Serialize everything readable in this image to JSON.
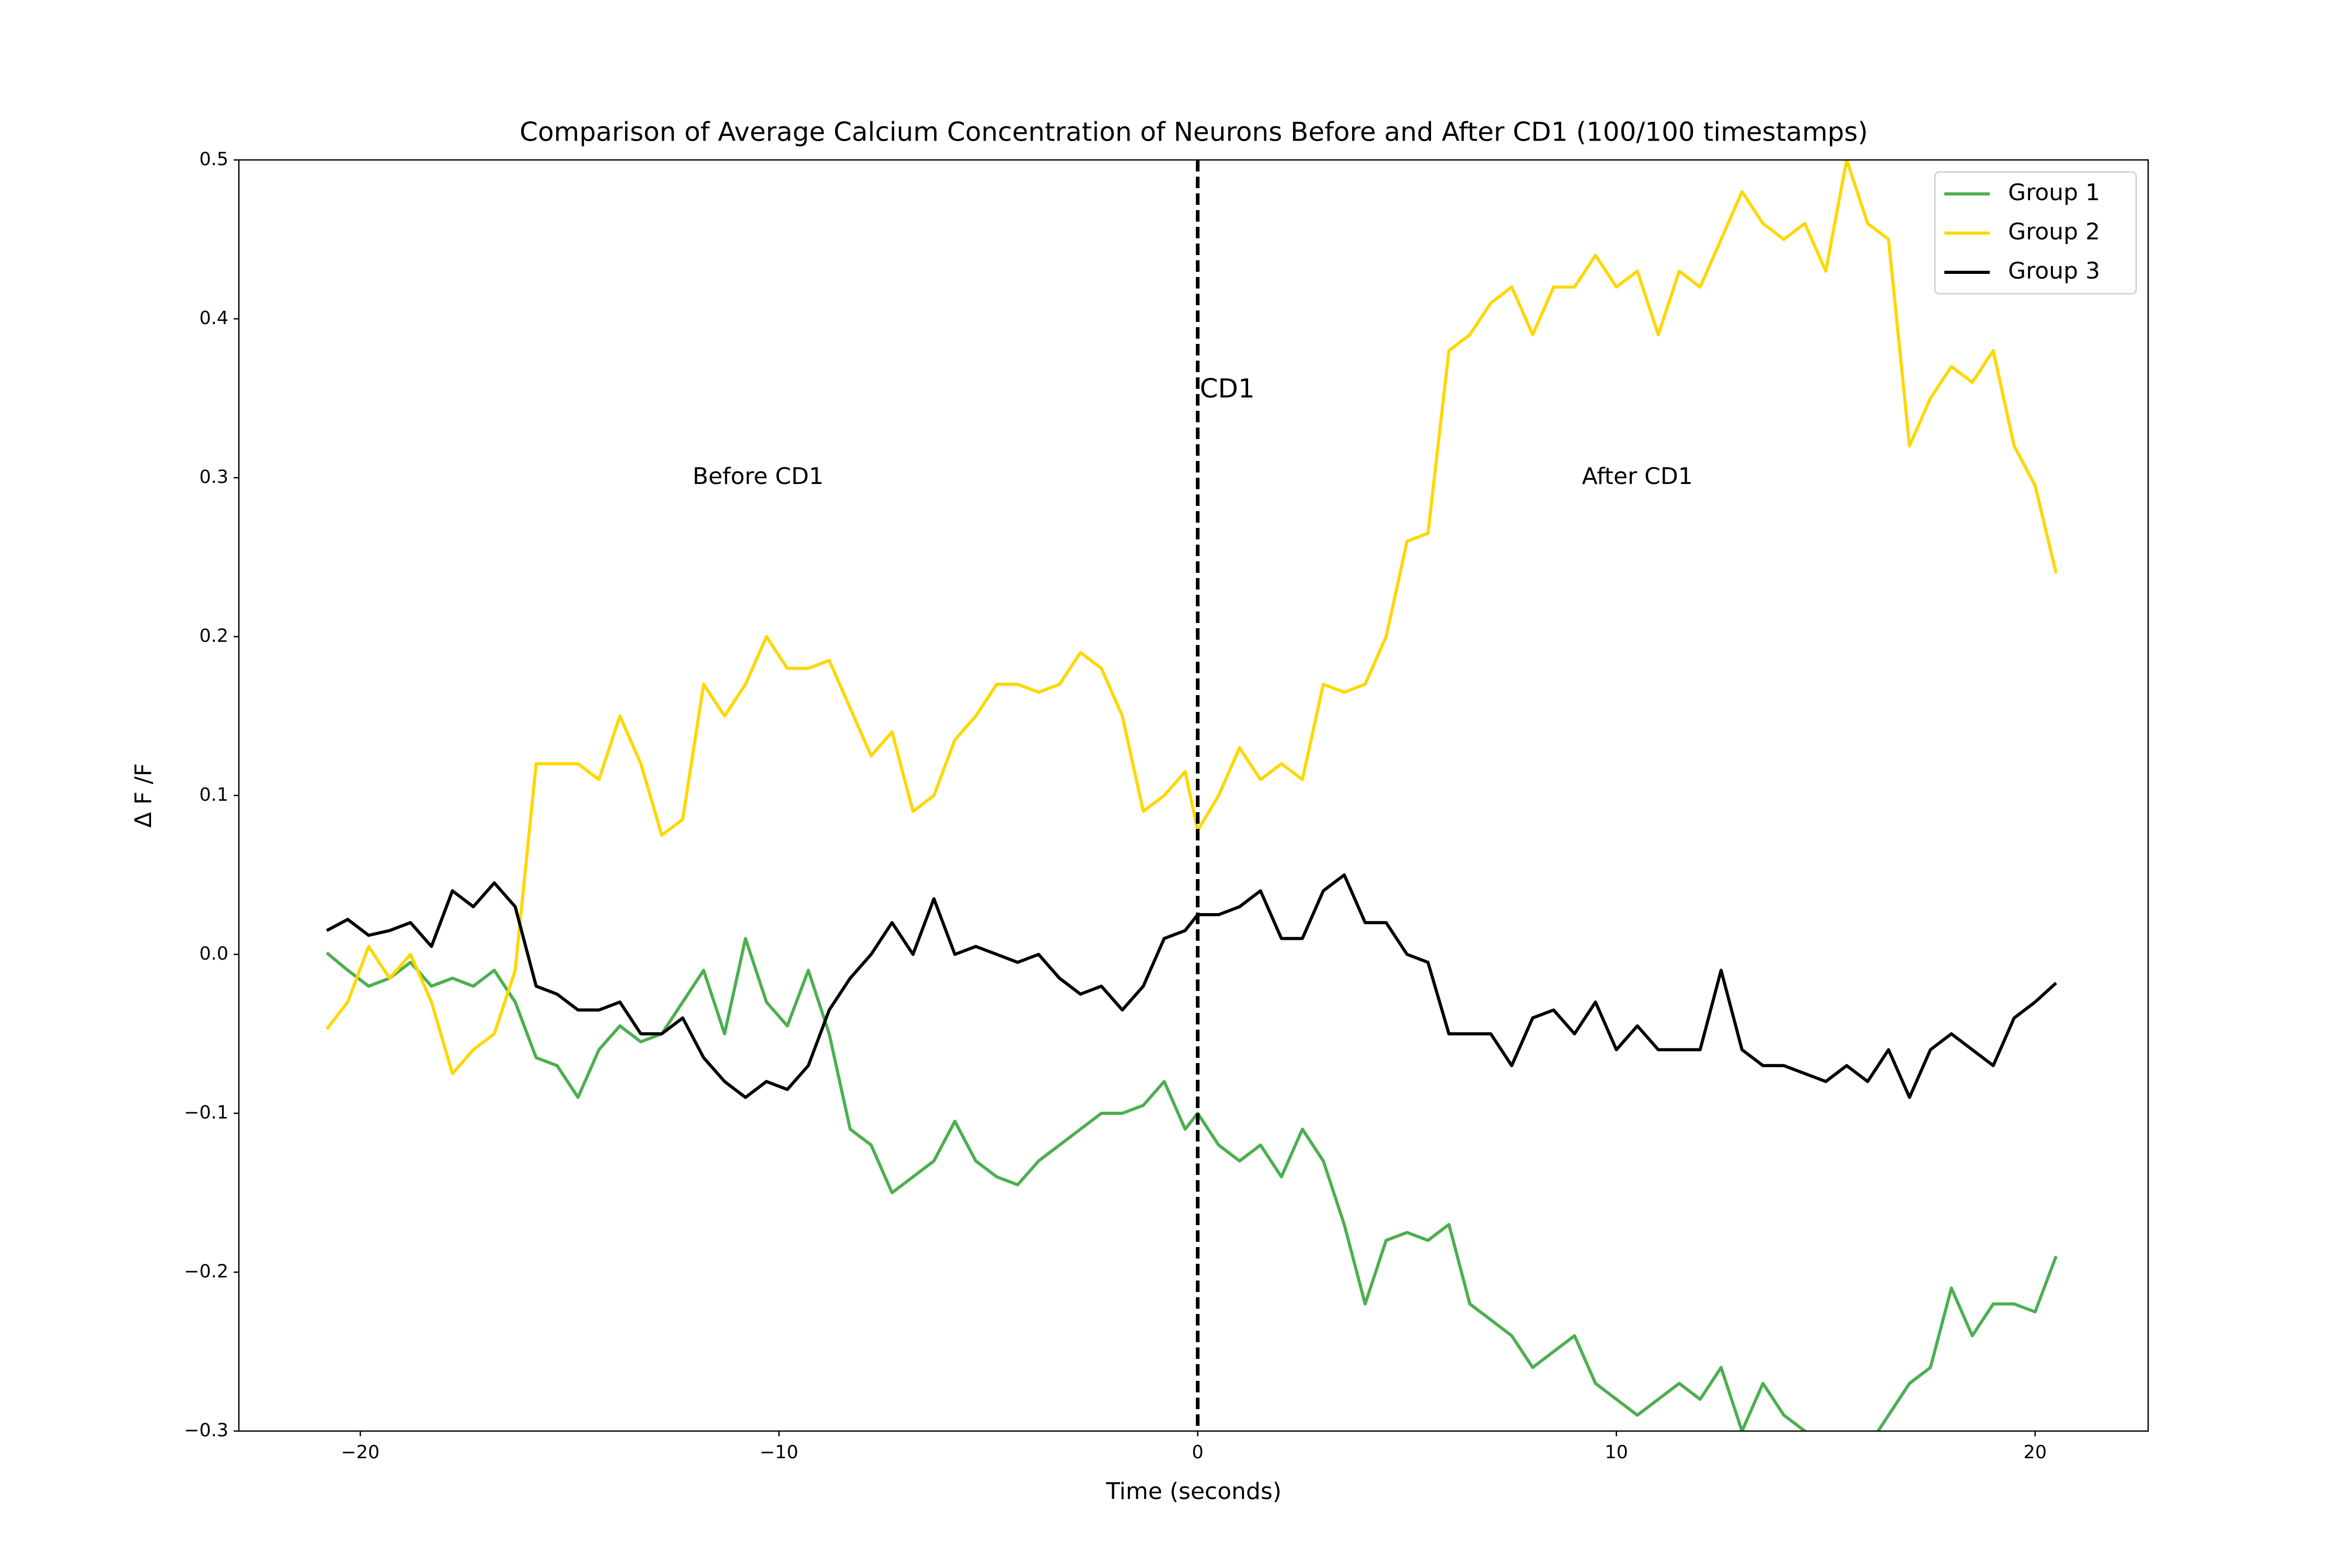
{
  "chart_data": {
    "type": "line",
    "title": "Comparison of Average Calcium Concentration of Neurons Before and After CD1 (100/100 timestamps)",
    "x_label": "Time (seconds)",
    "y_label": "Δ F /F",
    "x": [
      -20.8,
      -20.3,
      -19.8,
      -19.3,
      -18.8,
      -18.3,
      -17.8,
      -17.3,
      -16.8,
      -16.3,
      -15.8,
      -15.3,
      -14.8,
      -14.3,
      -13.8,
      -13.3,
      -12.8,
      -12.3,
      -11.8,
      -11.3,
      -10.8,
      -10.3,
      -9.8,
      -9.3,
      -8.8,
      -8.3,
      -7.8,
      -7.3,
      -6.8,
      -6.3,
      -5.8,
      -5.3,
      -4.8,
      -4.3,
      -3.8,
      -3.3,
      -2.8,
      -2.3,
      -1.8,
      -1.3,
      -0.8,
      -0.3,
      0,
      0.5,
      1,
      1.5,
      2,
      2.5,
      3,
      3.5,
      4,
      4.5,
      5,
      5.5,
      6,
      6.5,
      7,
      7.5,
      8,
      8.5,
      9,
      9.5,
      10,
      10.5,
      11,
      11.5,
      12,
      12.5,
      13,
      13.5,
      14,
      14.5,
      15,
      15.5,
      16,
      16.5,
      17,
      17.5,
      18,
      18.5,
      19,
      19.5,
      20,
      20.5
    ],
    "series": [
      {
        "name": "Group 1",
        "color": "#4caf50",
        "values": [
          0.001,
          -0.01,
          -0.02,
          -0.015,
          -0.005,
          -0.02,
          -0.015,
          -0.02,
          -0.01,
          -0.03,
          -0.065,
          -0.07,
          -0.09,
          -0.06,
          -0.045,
          -0.055,
          -0.05,
          -0.03,
          -0.01,
          -0.05,
          0.01,
          -0.03,
          -0.045,
          -0.01,
          -0.05,
          -0.11,
          -0.12,
          -0.15,
          -0.14,
          -0.13,
          -0.105,
          -0.13,
          -0.14,
          -0.145,
          -0.13,
          -0.12,
          -0.11,
          -0.1,
          -0.1,
          -0.095,
          -0.08,
          -0.11,
          -0.1,
          -0.12,
          -0.13,
          -0.12,
          -0.14,
          -0.11,
          -0.13,
          -0.17,
          -0.22,
          -0.18,
          -0.175,
          -0.18,
          -0.17,
          -0.22,
          -0.23,
          -0.24,
          -0.26,
          -0.25,
          -0.24,
          -0.27,
          -0.28,
          -0.29,
          -0.28,
          -0.27,
          -0.28,
          -0.26,
          -0.3,
          -0.27,
          -0.29,
          -0.3,
          -0.31,
          -0.31,
          -0.31,
          -0.29,
          -0.27,
          -0.26,
          -0.21,
          -0.24,
          -0.22,
          -0.22,
          -0.225,
          -0.19
        ]
      },
      {
        "name": "Group 2",
        "color": "#ffd700",
        "values": [
          -0.047,
          -0.03,
          0.005,
          -0.015,
          0.0,
          -0.03,
          -0.075,
          -0.06,
          -0.05,
          -0.01,
          0.12,
          0.12,
          0.12,
          0.11,
          0.15,
          0.12,
          0.075,
          0.085,
          0.17,
          0.15,
          0.17,
          0.2,
          0.18,
          0.18,
          0.185,
          0.155,
          0.125,
          0.14,
          0.09,
          0.1,
          0.135,
          0.15,
          0.17,
          0.17,
          0.165,
          0.17,
          0.19,
          0.18,
          0.15,
          0.09,
          0.1,
          0.115,
          0.078,
          0.1,
          0.13,
          0.11,
          0.12,
          0.11,
          0.17,
          0.165,
          0.17,
          0.2,
          0.26,
          0.265,
          0.38,
          0.39,
          0.41,
          0.42,
          0.39,
          0.42,
          0.42,
          0.44,
          0.42,
          0.43,
          0.39,
          0.43,
          0.42,
          0.45,
          0.48,
          0.46,
          0.45,
          0.46,
          0.43,
          0.5,
          0.46,
          0.45,
          0.32,
          0.35,
          0.37,
          0.36,
          0.38,
          0.32,
          0.295,
          0.24
        ]
      },
      {
        "name": "Group 3",
        "color": "#000000",
        "values": [
          0.015,
          0.022,
          0.012,
          0.015,
          0.02,
          0.005,
          0.04,
          0.03,
          0.045,
          0.03,
          -0.02,
          -0.025,
          -0.035,
          -0.035,
          -0.03,
          -0.05,
          -0.05,
          -0.04,
          -0.065,
          -0.08,
          -0.09,
          -0.08,
          -0.085,
          -0.07,
          -0.035,
          -0.015,
          0.0,
          0.02,
          0.0,
          0.035,
          0.0,
          0.005,
          0.0,
          -0.005,
          0.0,
          -0.015,
          -0.025,
          -0.02,
          -0.035,
          -0.02,
          0.01,
          0.015,
          0.025,
          0.025,
          0.03,
          0.04,
          0.01,
          0.01,
          0.04,
          0.05,
          0.02,
          0.02,
          0.0,
          -0.005,
          -0.05,
          -0.05,
          -0.05,
          -0.07,
          -0.04,
          -0.035,
          -0.05,
          -0.03,
          -0.06,
          -0.045,
          -0.06,
          -0.06,
          -0.06,
          -0.01,
          -0.06,
          -0.07,
          -0.07,
          -0.075,
          -0.08,
          -0.07,
          -0.08,
          -0.06,
          -0.09,
          -0.06,
          -0.05,
          -0.06,
          -0.07,
          -0.04,
          -0.03,
          -0.018
        ]
      }
    ],
    "xlim": [
      -22.9,
      22.7
    ],
    "ylim": [
      -0.3,
      0.5
    ],
    "xticks": [
      {
        "value": -20,
        "label": "−20"
      },
      {
        "value": -10,
        "label": "−10"
      },
      0,
      10,
      20
    ],
    "yticks": [
      {
        "value": -0.3,
        "label": "−0.3"
      },
      {
        "value": -0.2,
        "label": "−0.2"
      },
      {
        "value": -0.1,
        "label": "−0.1"
      },
      {
        "value": 0,
        "label": "0.0"
      },
      0.1,
      0.2,
      0.3,
      0.4,
      0.5
    ],
    "vline": {
      "x": 0,
      "label": "CD1",
      "label_y": 0.355
    },
    "annotations": [
      {
        "text": "Before CD1",
        "x": -10.5,
        "y": 0.3
      },
      {
        "text": "After CD1",
        "x": 10.5,
        "y": 0.3
      }
    ],
    "legend": "upper right",
    "grid": false
  }
}
